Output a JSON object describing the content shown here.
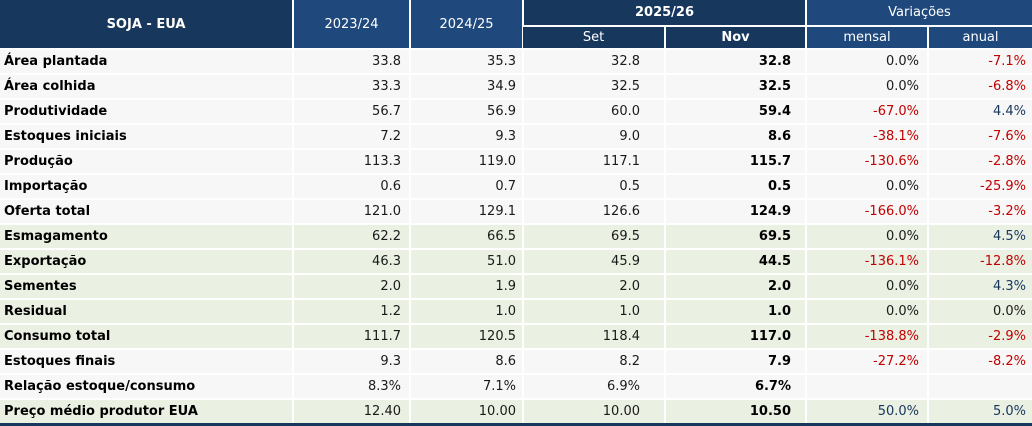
{
  "chart_data": {
    "type": "table",
    "title": "SOJA - EUA",
    "header": {
      "title": "SOJA - EUA",
      "col_2023_24": "2023/24",
      "col_2024_25": "2024/25",
      "col_2025_26": "2025/26",
      "col_variacoes": "Variações",
      "sub_set": "Set",
      "sub_nov": "Nov",
      "sub_mensal": "mensal",
      "sub_anual": "anual"
    },
    "columns": [
      "2023/24",
      "2024/25",
      "2025/26 Set",
      "2025/26 Nov",
      "Variações mensal",
      "Variações anual"
    ],
    "rows": [
      {
        "label": "Área plantada",
        "y2324": "33.8",
        "y2425": "35.3",
        "set": "32.8",
        "nov": "32.8",
        "mensal": "0.0%",
        "mensal_tone": "neutral",
        "anual": "-7.1%",
        "anual_tone": "neg",
        "bg": "gray"
      },
      {
        "label": "Área colhida",
        "y2324": "33.3",
        "y2425": "34.9",
        "set": "32.5",
        "nov": "32.5",
        "mensal": "0.0%",
        "mensal_tone": "neutral",
        "anual": "-6.8%",
        "anual_tone": "neg",
        "bg": "gray"
      },
      {
        "label": "Produtividade",
        "y2324": "56.7",
        "y2425": "56.9",
        "set": "60.0",
        "nov": "59.4",
        "mensal": "-67.0%",
        "mensal_tone": "neg",
        "anual": "4.4%",
        "anual_tone": "pos",
        "bg": "gray"
      },
      {
        "label": "Estoques iniciais",
        "y2324": "7.2",
        "y2425": "9.3",
        "set": "9.0",
        "nov": "8.6",
        "mensal": "-38.1%",
        "mensal_tone": "neg",
        "anual": "-7.6%",
        "anual_tone": "neg",
        "bg": "gray"
      },
      {
        "label": "Produção",
        "y2324": "113.3",
        "y2425": "119.0",
        "set": "117.1",
        "nov": "115.7",
        "mensal": "-130.6%",
        "mensal_tone": "neg",
        "anual": "-2.8%",
        "anual_tone": "neg",
        "bg": "gray"
      },
      {
        "label": "Importação",
        "y2324": "0.6",
        "y2425": "0.7",
        "set": "0.5",
        "nov": "0.5",
        "mensal": "0.0%",
        "mensal_tone": "neutral",
        "anual": "-25.9%",
        "anual_tone": "neg",
        "bg": "gray"
      },
      {
        "label": "Oferta total",
        "y2324": "121.0",
        "y2425": "129.1",
        "set": "126.6",
        "nov": "124.9",
        "mensal": "-166.0%",
        "mensal_tone": "neg",
        "anual": "-3.2%",
        "anual_tone": "neg",
        "bg": "gray"
      },
      {
        "label": "Esmagamento",
        "y2324": "62.2",
        "y2425": "66.5",
        "set": "69.5",
        "nov": "69.5",
        "mensal": "0.0%",
        "mensal_tone": "neutral",
        "anual": "4.5%",
        "anual_tone": "pos",
        "bg": "green"
      },
      {
        "label": "Exportação",
        "y2324": "46.3",
        "y2425": "51.0",
        "set": "45.9",
        "nov": "44.5",
        "mensal": "-136.1%",
        "mensal_tone": "neg",
        "anual": "-12.8%",
        "anual_tone": "neg",
        "bg": "green"
      },
      {
        "label": "Sementes",
        "y2324": "2.0",
        "y2425": "1.9",
        "set": "2.0",
        "nov": "2.0",
        "mensal": "0.0%",
        "mensal_tone": "neutral",
        "anual": "4.3%",
        "anual_tone": "pos",
        "bg": "green"
      },
      {
        "label": "Residual",
        "y2324": "1.2",
        "y2425": "1.0",
        "set": "1.0",
        "nov": "1.0",
        "mensal": "0.0%",
        "mensal_tone": "neutral",
        "anual": "0.0%",
        "anual_tone": "neutral",
        "bg": "green"
      },
      {
        "label": "Consumo total",
        "y2324": "111.7",
        "y2425": "120.5",
        "set": "118.4",
        "nov": "117.0",
        "mensal": "-138.8%",
        "mensal_tone": "neg",
        "anual": "-2.9%",
        "anual_tone": "neg",
        "bg": "green"
      },
      {
        "label": "Estoques finais",
        "y2324": "9.3",
        "y2425": "8.6",
        "set": "8.2",
        "nov": "7.9",
        "mensal": "-27.2%",
        "mensal_tone": "neg",
        "anual": "-8.2%",
        "anual_tone": "neg",
        "bg": "gray"
      },
      {
        "label": "Relação estoque/consumo",
        "y2324": "8.3%",
        "y2425": "7.1%",
        "set": "6.9%",
        "nov": "6.7%",
        "mensal": "",
        "mensal_tone": "neutral",
        "anual": "",
        "anual_tone": "neutral",
        "bg": "gray"
      },
      {
        "label": "Preço médio produtor EUA",
        "y2324": "12.40",
        "y2425": "10.00",
        "set": "10.00",
        "nov": "10.50",
        "mensal": "50.0%",
        "mensal_tone": "pos",
        "anual": "5.0%",
        "anual_tone": "pos",
        "bg": "green"
      }
    ]
  },
  "colors": {
    "header_dark_navy": "#17375D",
    "header_blue": "#1F497D",
    "row_gray": "#F7F7F7",
    "row_green": "#EAF0E2",
    "negative_value": "#C00000",
    "positive_value": "#16365C",
    "body_text": "#1A1A1A"
  }
}
